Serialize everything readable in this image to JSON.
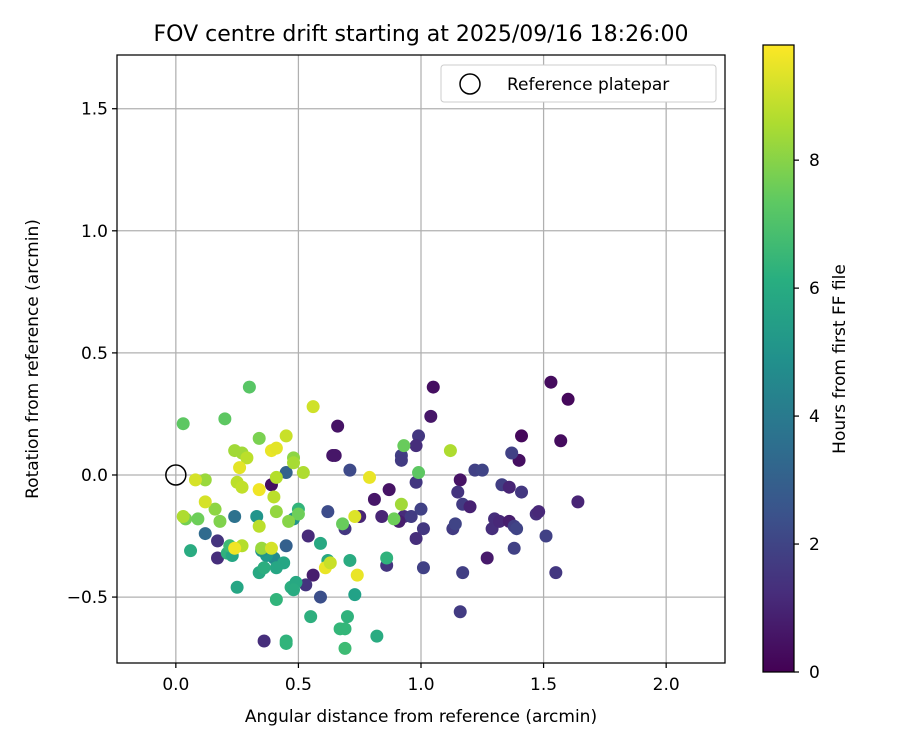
{
  "chart_data": {
    "type": "scatter",
    "title": "FOV centre drift starting at 2025/09/16 18:26:00",
    "xlabel": "Angular distance from reference (arcmin)",
    "ylabel": "Rotation from reference (arcmin)",
    "xlim": [
      -0.24,
      2.24
    ],
    "ylim": [
      -0.77,
      1.72
    ],
    "xticks": [
      0.0,
      0.5,
      1.0,
      1.5,
      2.0
    ],
    "xtick_labels": [
      "0.0",
      "0.5",
      "1.0",
      "1.5",
      "2.0"
    ],
    "yticks": [
      -0.5,
      0.0,
      0.5,
      1.0,
      1.5
    ],
    "ytick_labels": [
      "−0.5",
      "0.0",
      "0.5",
      "1.0",
      "1.5"
    ],
    "grid": true,
    "legend": {
      "position": "top-right",
      "entries": [
        {
          "label": "Reference platepar",
          "marker": "open-circle"
        }
      ]
    },
    "reference_point": {
      "x": 0.0,
      "y": 0.0
    },
    "colorbar": {
      "label": "Hours from first FF file",
      "colormap": "viridis",
      "range": [
        0,
        9.8
      ],
      "ticks": [
        0,
        2,
        4,
        6,
        8
      ],
      "tick_labels": [
        "0",
        "2",
        "4",
        "6",
        "8"
      ]
    },
    "points": [
      {
        "x": 1.53,
        "y": 0.38,
        "c": 0.3
      },
      {
        "x": 1.6,
        "y": 0.31,
        "c": 0.2
      },
      {
        "x": 1.05,
        "y": 0.36,
        "c": 0.4
      },
      {
        "x": 1.57,
        "y": 0.14,
        "c": 0.3
      },
      {
        "x": 1.41,
        "y": 0.16,
        "c": 0.2
      },
      {
        "x": 1.4,
        "y": 0.06,
        "c": 0.4
      },
      {
        "x": 1.04,
        "y": 0.24,
        "c": 0.6
      },
      {
        "x": 0.66,
        "y": 0.2,
        "c": 0.5
      },
      {
        "x": 0.99,
        "y": 0.16,
        "c": 1.6
      },
      {
        "x": 0.98,
        "y": 0.12,
        "c": 1.3
      },
      {
        "x": 0.92,
        "y": 0.08,
        "c": 1.8
      },
      {
        "x": 0.92,
        "y": 0.06,
        "c": 1.7
      },
      {
        "x": 1.22,
        "y": 0.02,
        "c": 1.9
      },
      {
        "x": 1.25,
        "y": 0.02,
        "c": 2.0
      },
      {
        "x": 1.37,
        "y": 0.09,
        "c": 1.9
      },
      {
        "x": 0.71,
        "y": 0.02,
        "c": 2.2
      },
      {
        "x": 0.64,
        "y": 0.08,
        "c": 0.6
      },
      {
        "x": 0.65,
        "y": 0.08,
        "c": 0.6
      },
      {
        "x": 1.16,
        "y": -0.02,
        "c": 0.5
      },
      {
        "x": 1.15,
        "y": -0.07,
        "c": 1.5
      },
      {
        "x": 1.17,
        "y": -0.12,
        "c": 1.7
      },
      {
        "x": 0.87,
        "y": -0.06,
        "c": 0.5
      },
      {
        "x": 0.81,
        "y": -0.1,
        "c": 0.6
      },
      {
        "x": 0.98,
        "y": -0.03,
        "c": 1.6
      },
      {
        "x": 1.33,
        "y": -0.04,
        "c": 1.8
      },
      {
        "x": 1.36,
        "y": -0.05,
        "c": 1.0
      },
      {
        "x": 1.41,
        "y": -0.07,
        "c": 1.6
      },
      {
        "x": 1.2,
        "y": -0.13,
        "c": 0.9
      },
      {
        "x": 0.75,
        "y": -0.17,
        "c": 1.0
      },
      {
        "x": 0.84,
        "y": -0.17,
        "c": 1.0
      },
      {
        "x": 0.93,
        "y": -0.17,
        "c": 1.2
      },
      {
        "x": 0.96,
        "y": -0.17,
        "c": 1.7
      },
      {
        "x": 1.0,
        "y": -0.14,
        "c": 1.9
      },
      {
        "x": 1.13,
        "y": -0.22,
        "c": 1.7
      },
      {
        "x": 1.14,
        "y": -0.2,
        "c": 2.0
      },
      {
        "x": 1.01,
        "y": -0.22,
        "c": 1.6
      },
      {
        "x": 0.98,
        "y": -0.26,
        "c": 1.3
      },
      {
        "x": 0.91,
        "y": -0.19,
        "c": 0.8
      },
      {
        "x": 1.29,
        "y": -0.22,
        "c": 1.3
      },
      {
        "x": 1.3,
        "y": -0.18,
        "c": 1.3
      },
      {
        "x": 1.32,
        "y": -0.19,
        "c": 1.1
      },
      {
        "x": 1.36,
        "y": -0.19,
        "c": 0.8
      },
      {
        "x": 1.38,
        "y": -0.21,
        "c": 1.8
      },
      {
        "x": 1.39,
        "y": -0.22,
        "c": 2.0
      },
      {
        "x": 1.47,
        "y": -0.16,
        "c": 1.3
      },
      {
        "x": 1.48,
        "y": -0.15,
        "c": 1.1
      },
      {
        "x": 1.51,
        "y": -0.25,
        "c": 1.9
      },
      {
        "x": 1.64,
        "y": -0.11,
        "c": 1.0
      },
      {
        "x": 1.38,
        "y": -0.3,
        "c": 1.9
      },
      {
        "x": 1.27,
        "y": -0.34,
        "c": 0.7
      },
      {
        "x": 1.17,
        "y": -0.4,
        "c": 1.8
      },
      {
        "x": 1.01,
        "y": -0.38,
        "c": 1.9
      },
      {
        "x": 0.86,
        "y": -0.37,
        "c": 1.5
      },
      {
        "x": 1.55,
        "y": -0.4,
        "c": 1.6
      },
      {
        "x": 1.16,
        "y": -0.56,
        "c": 1.7
      },
      {
        "x": 0.69,
        "y": -0.22,
        "c": 1.6
      },
      {
        "x": 0.62,
        "y": -0.15,
        "c": 2.3
      },
      {
        "x": 0.54,
        "y": -0.25,
        "c": 1.2
      },
      {
        "x": 0.59,
        "y": -0.5,
        "c": 2.4
      },
      {
        "x": 0.56,
        "y": -0.41,
        "c": 0.8
      },
      {
        "x": 0.53,
        "y": -0.45,
        "c": 1.5
      },
      {
        "x": 0.36,
        "y": -0.68,
        "c": 1.3
      },
      {
        "x": 0.45,
        "y": 0.01,
        "c": 3.1
      },
      {
        "x": 0.39,
        "y": -0.04,
        "c": 0.4
      },
      {
        "x": 0.17,
        "y": -0.27,
        "c": 1.5
      },
      {
        "x": 0.17,
        "y": -0.34,
        "c": 1.3
      },
      {
        "x": 0.12,
        "y": -0.24,
        "c": 3.4
      },
      {
        "x": 0.45,
        "y": -0.29,
        "c": 3.0
      },
      {
        "x": 0.24,
        "y": -0.17,
        "c": 3.7
      },
      {
        "x": 0.33,
        "y": -0.17,
        "c": 5.1
      },
      {
        "x": 0.48,
        "y": -0.18,
        "c": 5.0
      },
      {
        "x": 0.4,
        "y": -0.34,
        "c": 4.7
      },
      {
        "x": 0.37,
        "y": -0.33,
        "c": 5.3
      },
      {
        "x": 0.35,
        "y": -0.31,
        "c": 5.1
      },
      {
        "x": 0.59,
        "y": -0.28,
        "c": 5.9
      },
      {
        "x": 0.44,
        "y": -0.36,
        "c": 5.8
      },
      {
        "x": 0.41,
        "y": -0.38,
        "c": 5.8
      },
      {
        "x": 0.34,
        "y": -0.4,
        "c": 5.9
      },
      {
        "x": 0.36,
        "y": -0.38,
        "c": 6.1
      },
      {
        "x": 0.47,
        "y": -0.46,
        "c": 6.1
      },
      {
        "x": 0.49,
        "y": -0.44,
        "c": 5.9
      },
      {
        "x": 0.48,
        "y": -0.47,
        "c": 6.0
      },
      {
        "x": 0.41,
        "y": -0.51,
        "c": 6.4
      },
      {
        "x": 0.25,
        "y": -0.46,
        "c": 5.8
      },
      {
        "x": 0.55,
        "y": -0.58,
        "c": 6.2
      },
      {
        "x": 0.7,
        "y": -0.58,
        "c": 6.3
      },
      {
        "x": 0.67,
        "y": -0.63,
        "c": 6.5
      },
      {
        "x": 0.69,
        "y": -0.63,
        "c": 6.5
      },
      {
        "x": 0.45,
        "y": -0.68,
        "c": 6.3
      },
      {
        "x": 0.45,
        "y": -0.69,
        "c": 6.4
      },
      {
        "x": 0.69,
        "y": -0.71,
        "c": 6.7
      },
      {
        "x": 0.82,
        "y": -0.66,
        "c": 6.0
      },
      {
        "x": 0.73,
        "y": -0.49,
        "c": 5.6
      },
      {
        "x": 0.86,
        "y": -0.34,
        "c": 6.3
      },
      {
        "x": 0.71,
        "y": -0.35,
        "c": 6.0
      },
      {
        "x": 0.62,
        "y": -0.35,
        "c": 5.9
      },
      {
        "x": 0.21,
        "y": -0.32,
        "c": 6.3
      },
      {
        "x": 0.23,
        "y": -0.33,
        "c": 5.8
      },
      {
        "x": 0.22,
        "y": -0.29,
        "c": 6.7
      },
      {
        "x": 0.06,
        "y": -0.31,
        "c": 6.0
      },
      {
        "x": 0.5,
        "y": -0.14,
        "c": 6.4
      },
      {
        "x": 0.5,
        "y": -0.16,
        "c": 7.6
      },
      {
        "x": 0.04,
        "y": -0.18,
        "c": 7.7
      },
      {
        "x": 0.03,
        "y": 0.21,
        "c": 7.3
      },
      {
        "x": 0.2,
        "y": 0.23,
        "c": 7.3
      },
      {
        "x": 0.3,
        "y": 0.36,
        "c": 7.2
      },
      {
        "x": 0.34,
        "y": 0.15,
        "c": 7.8
      },
      {
        "x": 0.24,
        "y": 0.1,
        "c": 8.4
      },
      {
        "x": 0.27,
        "y": 0.09,
        "c": 8.4
      },
      {
        "x": 0.48,
        "y": 0.07,
        "c": 8.1
      },
      {
        "x": 0.48,
        "y": 0.05,
        "c": 8.5
      },
      {
        "x": 0.52,
        "y": 0.01,
        "c": 8.6
      },
      {
        "x": 0.93,
        "y": 0.12,
        "c": 7.5
      },
      {
        "x": 0.99,
        "y": 0.01,
        "c": 7.3
      },
      {
        "x": 1.12,
        "y": 0.1,
        "c": 8.6
      },
      {
        "x": 0.45,
        "y": 0.16,
        "c": 9.0
      },
      {
        "x": 0.56,
        "y": 0.28,
        "c": 9.1
      },
      {
        "x": 0.12,
        "y": -0.02,
        "c": 8.3
      },
      {
        "x": 0.08,
        "y": -0.02,
        "c": 9.2
      },
      {
        "x": 0.16,
        "y": -0.14,
        "c": 8.1
      },
      {
        "x": 0.18,
        "y": -0.19,
        "c": 7.9
      },
      {
        "x": 0.09,
        "y": -0.18,
        "c": 7.6
      },
      {
        "x": 0.03,
        "y": -0.17,
        "c": 8.6
      },
      {
        "x": 0.12,
        "y": -0.11,
        "c": 9.2
      },
      {
        "x": 0.25,
        "y": -0.03,
        "c": 8.8
      },
      {
        "x": 0.27,
        "y": -0.05,
        "c": 8.9
      },
      {
        "x": 0.29,
        "y": 0.07,
        "c": 8.8
      },
      {
        "x": 0.26,
        "y": 0.03,
        "c": 9.4
      },
      {
        "x": 0.39,
        "y": 0.1,
        "c": 9.5
      },
      {
        "x": 0.41,
        "y": 0.11,
        "c": 9.4
      },
      {
        "x": 0.41,
        "y": -0.01,
        "c": 8.7
      },
      {
        "x": 0.34,
        "y": -0.06,
        "c": 9.6
      },
      {
        "x": 0.4,
        "y": -0.09,
        "c": 8.8
      },
      {
        "x": 0.41,
        "y": -0.15,
        "c": 8.2
      },
      {
        "x": 0.46,
        "y": -0.19,
        "c": 8.0
      },
      {
        "x": 0.34,
        "y": -0.21,
        "c": 8.8
      },
      {
        "x": 0.27,
        "y": -0.29,
        "c": 8.7
      },
      {
        "x": 0.24,
        "y": -0.3,
        "c": 9.6
      },
      {
        "x": 0.35,
        "y": -0.3,
        "c": 8.3
      },
      {
        "x": 0.39,
        "y": -0.3,
        "c": 9.2
      },
      {
        "x": 0.61,
        "y": -0.38,
        "c": 9.5
      },
      {
        "x": 0.63,
        "y": -0.36,
        "c": 9.0
      },
      {
        "x": 0.74,
        "y": -0.41,
        "c": 9.5
      },
      {
        "x": 0.73,
        "y": -0.17,
        "c": 9.3
      },
      {
        "x": 0.68,
        "y": -0.2,
        "c": 7.5
      },
      {
        "x": 0.89,
        "y": -0.18,
        "c": 7.6
      },
      {
        "x": 0.92,
        "y": -0.12,
        "c": 8.4
      },
      {
        "x": 0.79,
        "y": -0.01,
        "c": 9.5
      }
    ]
  }
}
